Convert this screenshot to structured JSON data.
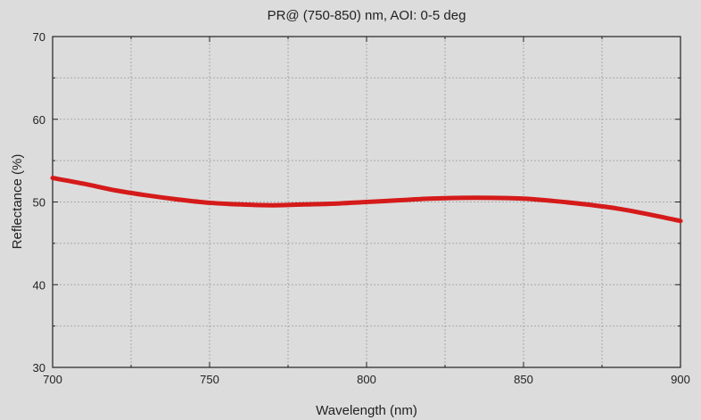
{
  "chart_data": {
    "type": "line",
    "title": "PR@ (750-850) nm, AOI: 0-5 deg",
    "xlabel": "Wavelength (nm)",
    "ylabel": "Reflectance (%)",
    "xlim": [
      700,
      900
    ],
    "ylim": [
      30,
      70
    ],
    "xticks": [
      700,
      750,
      800,
      850,
      900
    ],
    "yticks": [
      30,
      40,
      50,
      60,
      70
    ],
    "x_minor_step": 25,
    "y_minor_step": 5,
    "grid": true,
    "series": [
      {
        "color": "#d51a1a",
        "x": [
          700,
          710,
          720,
          730,
          740,
          750,
          760,
          770,
          780,
          790,
          800,
          810,
          820,
          830,
          840,
          850,
          860,
          870,
          880,
          890,
          900
        ],
        "y": [
          52.9,
          52.2,
          51.4,
          50.8,
          50.3,
          49.9,
          49.7,
          49.6,
          49.7,
          49.8,
          50.0,
          50.2,
          50.4,
          50.5,
          50.5,
          50.4,
          50.1,
          49.7,
          49.2,
          48.5,
          47.7
        ]
      }
    ]
  }
}
